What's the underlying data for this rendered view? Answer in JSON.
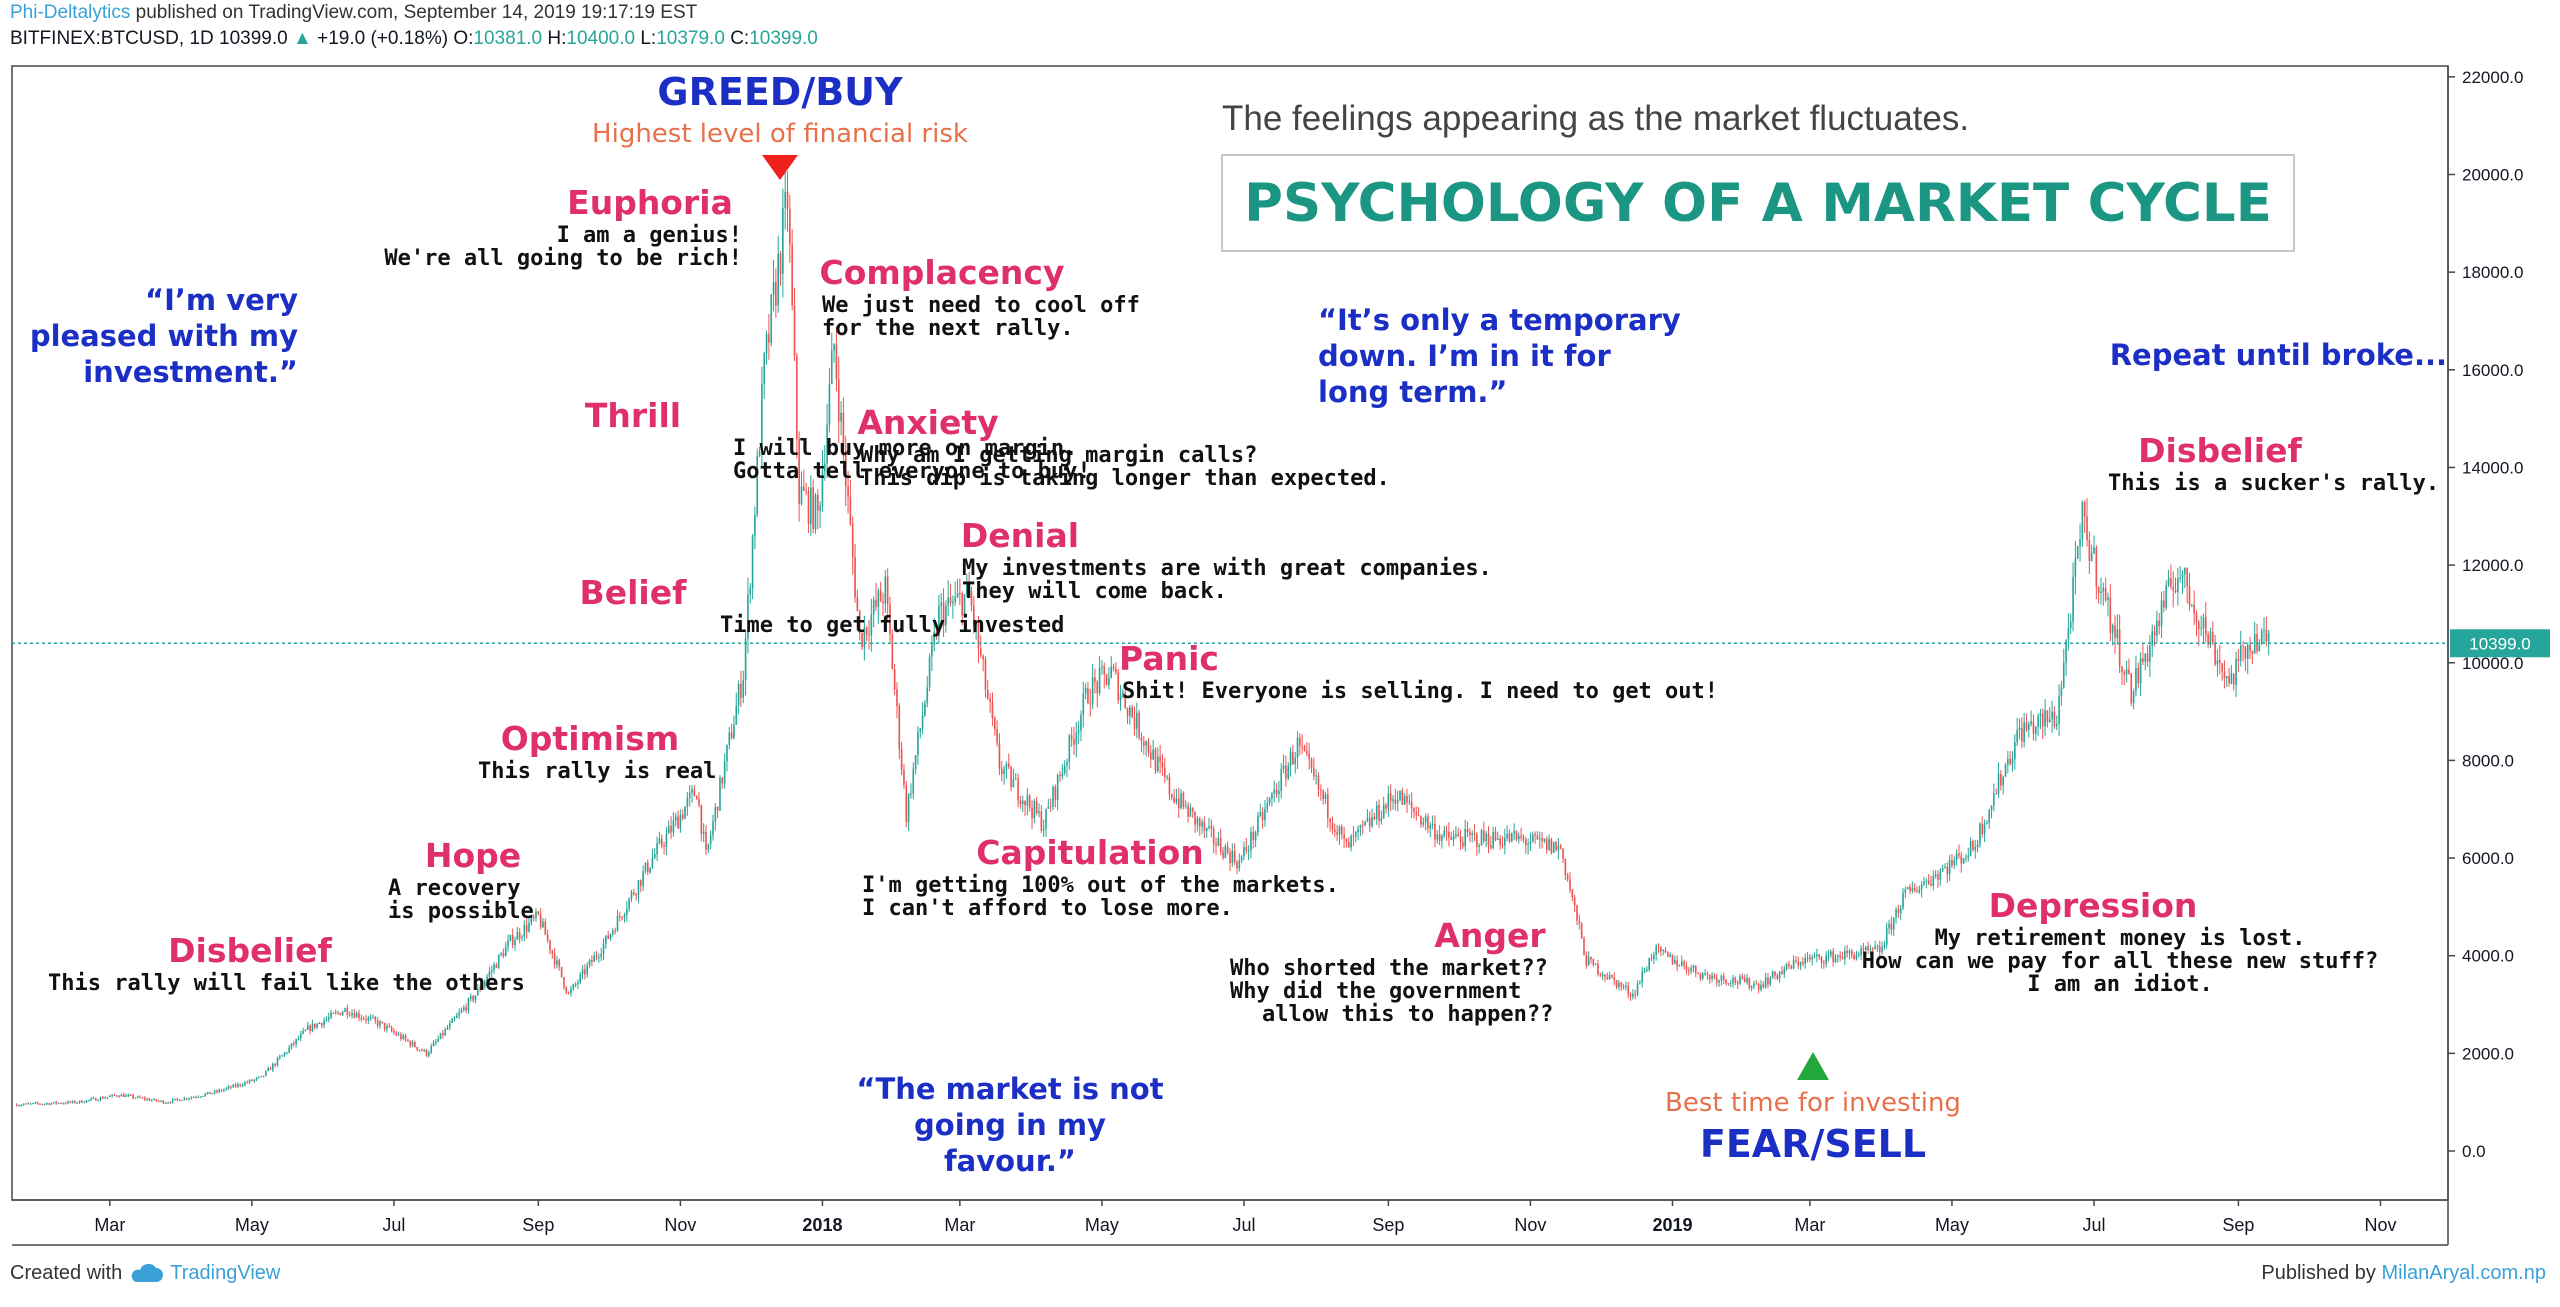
{
  "header": {
    "author": "Phi-Deltalytics",
    "published_text": "published on TradingView.com, September 14, 2019 19:17:19 EST",
    "symbol_line": "BITFINEX:BTCUSD, 1D",
    "last": "10399.0",
    "change": "+19.0 (+0.18%)",
    "o_label": "O:",
    "o_value": "10381.0",
    "h_label": "H:",
    "h_value": "10400.0",
    "l_label": "L:",
    "l_value": "10379.0",
    "c_label": "C:",
    "c_value": "10399.0"
  },
  "footer": {
    "created_with": "Created with",
    "tradingview": "TradingView",
    "published_by": "Published by",
    "site": "MilanAryal.com.np"
  },
  "colors": {
    "up": "#26a69a",
    "down": "#ef5350",
    "phase": "#e0306a",
    "quote": "#1c2fc4",
    "accent_orange": "#e8704a",
    "title_teal": "#1a9682",
    "price_line": "#26a69a"
  },
  "chart_data": {
    "type": "candlestick",
    "title": "PSYCHOLOGY OF A MARKET CYCLE",
    "subtitle": "The feelings appearing as the market fluctuates.",
    "y_axis_side": "right",
    "ylim": [
      -1000,
      22500
    ],
    "y_ticks": [
      "22000.0",
      "20000.0",
      "18000.0",
      "16000.0",
      "14000.0",
      "12000.0",
      "10000.0",
      "8000.0",
      "6000.0",
      "4000.0",
      "2000.0",
      "0.0"
    ],
    "x_ticks": [
      {
        "label": "Mar",
        "date": "2017-03-01"
      },
      {
        "label": "May",
        "date": "2017-05-01"
      },
      {
        "label": "Jul",
        "date": "2017-07-01"
      },
      {
        "label": "Sep",
        "date": "2017-09-01"
      },
      {
        "label": "Nov",
        "date": "2017-11-01"
      },
      {
        "label": "2018",
        "date": "2018-01-01"
      },
      {
        "label": "Mar",
        "date": "2018-03-01"
      },
      {
        "label": "May",
        "date": "2018-05-01"
      },
      {
        "label": "Jul",
        "date": "2018-07-01"
      },
      {
        "label": "Sep",
        "date": "2018-09-01"
      },
      {
        "label": "Nov",
        "date": "2018-11-01"
      },
      {
        "label": "2019",
        "date": "2019-01-01"
      },
      {
        "label": "Mar",
        "date": "2019-03-01"
      },
      {
        "label": "May",
        "date": "2019-05-01"
      },
      {
        "label": "Jul",
        "date": "2019-07-01"
      },
      {
        "label": "Sep",
        "date": "2019-09-01"
      },
      {
        "label": "Nov",
        "date": "2019-11-01"
      }
    ],
    "x_range": [
      "2017-01-18",
      "2019-11-30"
    ],
    "last_price_label": "10399.0",
    "last_price": 10399,
    "price_path": [
      [
        "2017-01-20",
        950
      ],
      [
        "2017-02-15",
        1000
      ],
      [
        "2017-03-05",
        1150
      ],
      [
        "2017-03-25",
        1000
      ],
      [
        "2017-04-15",
        1200
      ],
      [
        "2017-05-05",
        1500
      ],
      [
        "2017-05-25",
        2500
      ],
      [
        "2017-06-10",
        2900
      ],
      [
        "2017-06-25",
        2600
      ],
      [
        "2017-07-15",
        2000
      ],
      [
        "2017-08-05",
        3200
      ],
      [
        "2017-08-20",
        4300
      ],
      [
        "2017-09-01",
        4800
      ],
      [
        "2017-09-14",
        3200
      ],
      [
        "2017-09-30",
        4300
      ],
      [
        "2017-10-20",
        6000
      ],
      [
        "2017-11-08",
        7400
      ],
      [
        "2017-11-12",
        6000
      ],
      [
        "2017-11-28",
        9800
      ],
      [
        "2017-12-07",
        16000
      ],
      [
        "2017-12-17",
        19500
      ],
      [
        "2017-12-22",
        13500
      ],
      [
        "2017-12-30",
        13000
      ],
      [
        "2018-01-06",
        16500
      ],
      [
        "2018-01-17",
        10500
      ],
      [
        "2018-01-28",
        11500
      ],
      [
        "2018-02-06",
        6900
      ],
      [
        "2018-02-20",
        11000
      ],
      [
        "2018-03-05",
        11400
      ],
      [
        "2018-03-18",
        7900
      ],
      [
        "2018-04-06",
        6700
      ],
      [
        "2018-04-25",
        9400
      ],
      [
        "2018-05-05",
        9800
      ],
      [
        "2018-05-30",
        7400
      ],
      [
        "2018-06-15",
        6500
      ],
      [
        "2018-06-29",
        5900
      ],
      [
        "2018-07-24",
        8300
      ],
      [
        "2018-08-14",
        6200
      ],
      [
        "2018-09-04",
        7300
      ],
      [
        "2018-09-25",
        6400
      ],
      [
        "2018-10-25",
        6400
      ],
      [
        "2018-11-14",
        6200
      ],
      [
        "2018-11-25",
        3900
      ],
      [
        "2018-12-15",
        3200
      ],
      [
        "2018-12-24",
        4100
      ],
      [
        "2019-01-15",
        3600
      ],
      [
        "2019-02-07",
        3400
      ],
      [
        "2019-02-25",
        3900
      ],
      [
        "2019-03-31",
        4100
      ],
      [
        "2019-04-10",
        5200
      ],
      [
        "2019-05-10",
        6200
      ],
      [
        "2019-05-30",
        8600
      ],
      [
        "2019-06-15",
        8900
      ],
      [
        "2019-06-26",
        12900
      ],
      [
        "2019-07-17",
        9400
      ],
      [
        "2019-08-06",
        11900
      ],
      [
        "2019-08-28",
        9600
      ],
      [
        "2019-09-07",
        10500
      ],
      [
        "2019-09-14",
        10399
      ]
    ],
    "annotations": [
      {
        "text": "GREED/BUY",
        "kind": "title-blue"
      },
      {
        "text": "Highest level of financial risk",
        "kind": "orange"
      },
      {
        "text": "Best time for investing",
        "kind": "orange"
      },
      {
        "text": "FEAR/SELL",
        "kind": "title-blue"
      }
    ],
    "phases": [
      {
        "label": "Disbelief",
        "lines": [
          "This rally will fail like the others"
        ]
      },
      {
        "label": "Hope",
        "lines": [
          "A recovery",
          "is possible"
        ]
      },
      {
        "label": "Optimism",
        "lines": [
          "This rally is real"
        ]
      },
      {
        "label": "Belief",
        "lines": [
          "Time to get fully invested"
        ]
      },
      {
        "label": "Thrill",
        "lines": [
          "I will buy more on margin.",
          "Gotta tell everyone to buy!"
        ]
      },
      {
        "label": "Euphoria",
        "lines": [
          "I am a genius!",
          "We're all going to be rich!"
        ]
      },
      {
        "label": "Complacency",
        "lines": [
          "We just need to cool off",
          "for the next rally."
        ]
      },
      {
        "label": "Anxiety",
        "lines": [
          "Why am I getting margin calls?",
          "This dip is taking longer than expected."
        ]
      },
      {
        "label": "Denial",
        "lines": [
          "My investments are with great companies.",
          "They will come back."
        ]
      },
      {
        "label": "Panic",
        "lines": [
          "Shit! Everyone is selling. I need to get out!"
        ]
      },
      {
        "label": "Capitulation",
        "lines": [
          "I'm getting 100% out of the markets.",
          "I can't afford to lose more."
        ]
      },
      {
        "label": "Anger",
        "lines": [
          "Who shorted the market??",
          "Why did the government",
          "allow this to happen??"
        ]
      },
      {
        "label": "Depression",
        "lines": [
          "My retirement money is lost.",
          "How can we pay for all these new stuff?",
          "I am an idiot."
        ]
      },
      {
        "label": "Disbelief",
        "lines": [
          "This is a sucker's rally."
        ]
      }
    ],
    "quotes": [
      {
        "lines": [
          "“I’m very",
          "pleased with my",
          "investment.”"
        ]
      },
      {
        "lines": [
          "“It’s only a temporary",
          "down. I’m in it for",
          "long term.”"
        ]
      },
      {
        "lines": [
          "“The market is not",
          "going in my",
          "favour.”"
        ]
      },
      {
        "lines": [
          "Repeat until broke..."
        ]
      }
    ]
  }
}
